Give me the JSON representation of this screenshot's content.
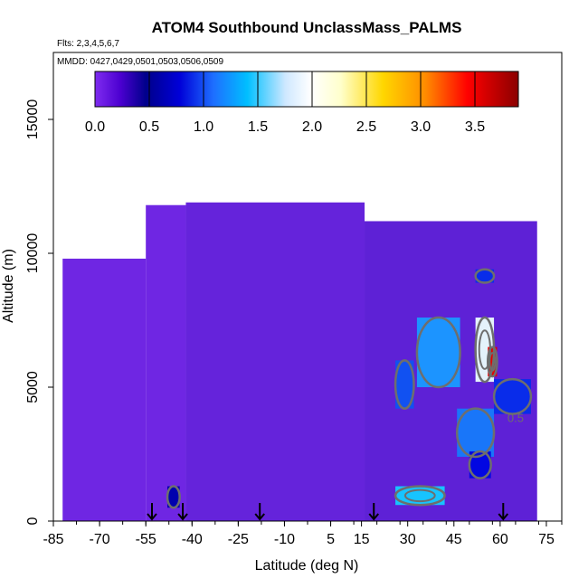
{
  "chart_data": {
    "type": "heatmap",
    "title": "ATOM4 Southbound UnclassMass_PALMS",
    "notes": [
      "Flts: 2,3,4,5,6,7",
      "MMDD: 0427,0429,0501,0503,0506,0509"
    ],
    "xlabel": "Latitude (deg N)",
    "ylabel": "Altitude (m)",
    "xlim": [
      -85,
      80
    ],
    "ylim": [
      0,
      17500
    ],
    "x_ticks": [
      -85,
      -70,
      -55,
      -40,
      -25,
      -10,
      5,
      15,
      30,
      45,
      60,
      75
    ],
    "y_ticks": [
      0,
      5000,
      10000,
      15000
    ],
    "colorbar": {
      "ticks": [
        0.0,
        0.5,
        1.0,
        1.5,
        2.0,
        2.5,
        3.0,
        3.5
      ],
      "tick_labels": [
        "0.0",
        "0.5",
        "1.0",
        "1.5",
        "2.0",
        "2.5",
        "3.0",
        "3.5"
      ],
      "range": [
        0,
        3.9
      ],
      "colors": [
        "#7f2cf0",
        "#00008b",
        "#0000e0",
        "#1e90ff",
        "#00bfff",
        "#e0f0ff",
        "#ffffe0",
        "#ffd700",
        "#ff8c00",
        "#ff0000",
        "#8b0000"
      ]
    },
    "flight_arrows_lat": [
      -53,
      -43,
      -18,
      19,
      61
    ],
    "contour_label": "0.5",
    "grid": false,
    "cells": [
      {
        "lat": [
          -82,
          -55
        ],
        "alt": [
          0,
          9800
        ],
        "value": 0.05
      },
      {
        "lat": [
          -55,
          -42
        ],
        "alt": [
          0,
          11800
        ],
        "value": 0.05
      },
      {
        "lat": [
          -42,
          16
        ],
        "alt": [
          0,
          11900
        ],
        "value": 0.08
      },
      {
        "lat": [
          16,
          72
        ],
        "alt": [
          0,
          11200
        ],
        "value": 0.1
      },
      {
        "lat": [
          -48,
          -44
        ],
        "alt": [
          500,
          1300
        ],
        "value": 0.55
      },
      {
        "lat": [
          26,
          42
        ],
        "alt": [
          600,
          1300
        ],
        "value": 1.6
      },
      {
        "lat": [
          33,
          47
        ],
        "alt": [
          5000,
          7600
        ],
        "value": 1.2
      },
      {
        "lat": [
          26,
          32
        ],
        "alt": [
          4200,
          6000
        ],
        "value": 1.0
      },
      {
        "lat": [
          46,
          58
        ],
        "alt": [
          2400,
          4200
        ],
        "value": 1.1
      },
      {
        "lat": [
          52,
          58
        ],
        "alt": [
          5200,
          7600
        ],
        "value": 2.0
      },
      {
        "lat": [
          56,
          59
        ],
        "alt": [
          5400,
          6500
        ],
        "value": 3.6
      },
      {
        "lat": [
          58,
          70
        ],
        "alt": [
          4000,
          5300
        ],
        "value": 0.9
      },
      {
        "lat": [
          50,
          57
        ],
        "alt": [
          1600,
          2600
        ],
        "value": 0.8
      },
      {
        "lat": [
          52,
          58
        ],
        "alt": [
          8900,
          9400
        ],
        "value": 0.9
      }
    ]
  }
}
